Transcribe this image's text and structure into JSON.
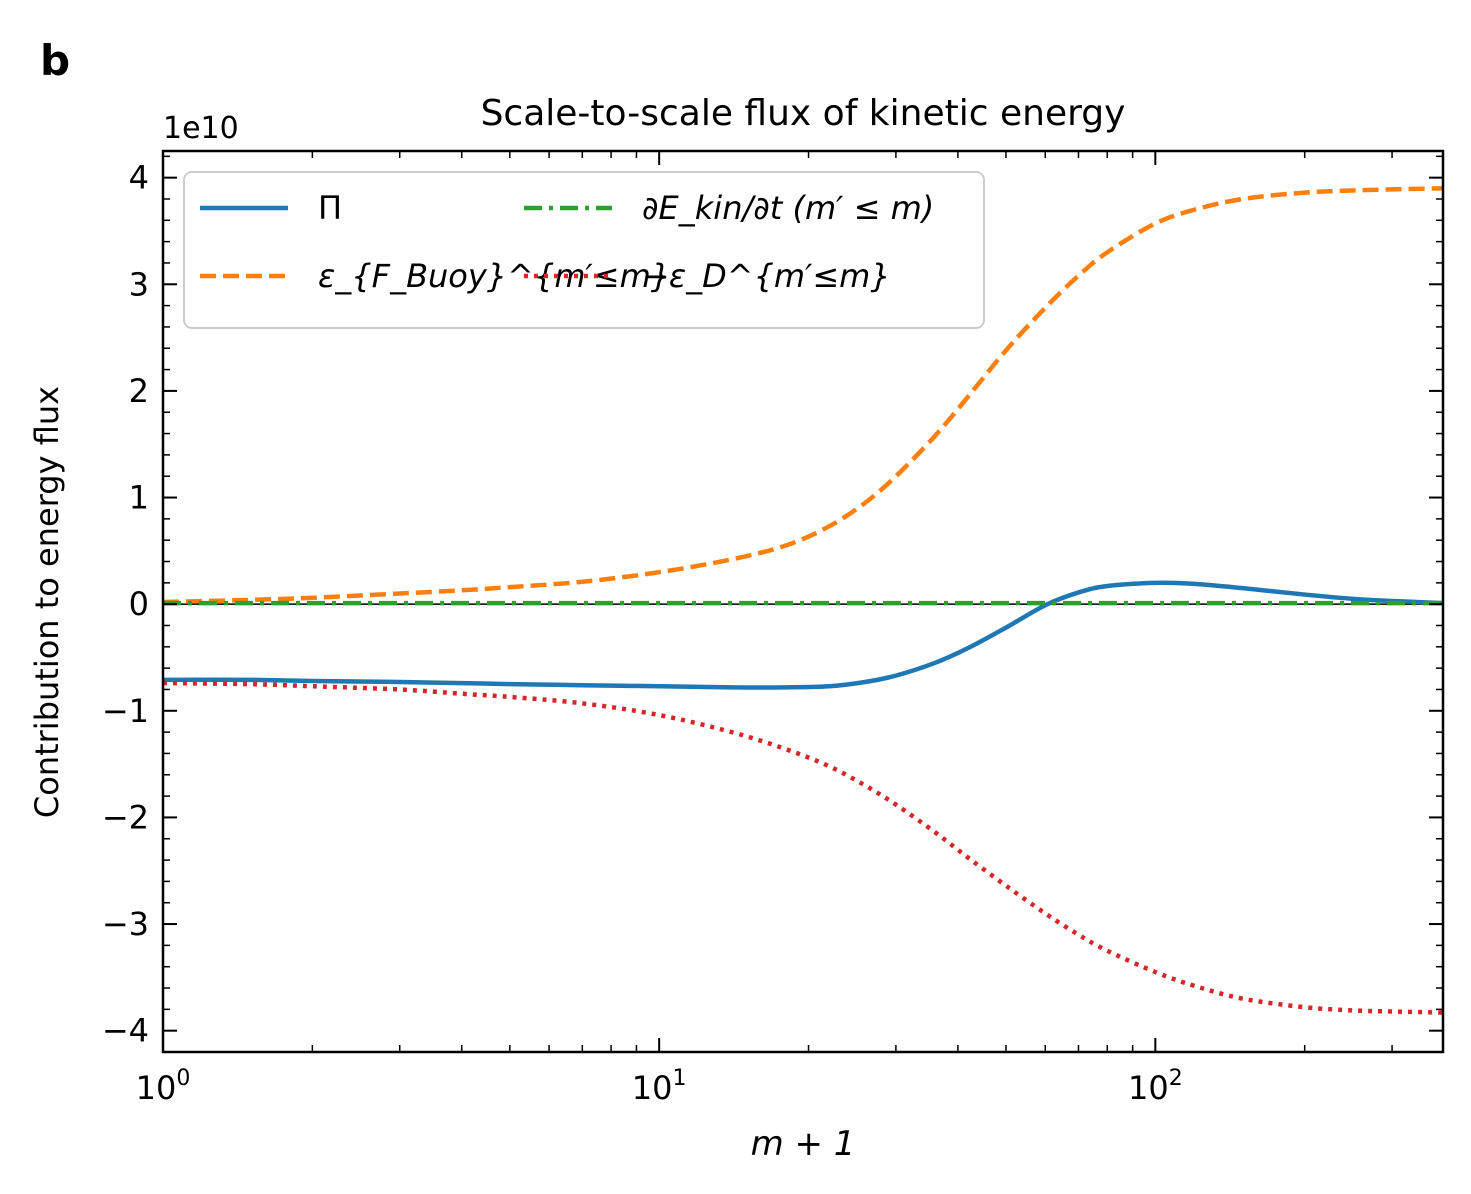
{
  "panel_label": "b",
  "chart_data": {
    "type": "line",
    "title": "Scale-to-scale flux of kinetic energy",
    "xlabel": "m + 1",
    "ylabel": "Contribution to energy flux",
    "x_scale": "log",
    "xlim": [
      1,
      380
    ],
    "ylim": [
      -4.2,
      4.25
    ],
    "y_multiplier": "1e10",
    "x_ticks": [
      {
        "value": 1,
        "base": "10",
        "exp": "0"
      },
      {
        "value": 10,
        "base": "10",
        "exp": "1"
      },
      {
        "value": 100,
        "base": "10",
        "exp": "2"
      }
    ],
    "y_ticks": [
      {
        "value": 4,
        "label": "4"
      },
      {
        "value": 3,
        "label": "3"
      },
      {
        "value": 2,
        "label": "2"
      },
      {
        "value": 1,
        "label": "1"
      },
      {
        "value": 0,
        "label": "0"
      },
      {
        "value": -1,
        "label": "−1"
      },
      {
        "value": -2,
        "label": "−2"
      },
      {
        "value": -3,
        "label": "−3"
      },
      {
        "value": -4,
        "label": "−4"
      }
    ],
    "zero_line": true,
    "legend_position": "upper-left",
    "x": [
      1,
      1.5,
      2,
      3,
      4,
      5,
      7,
      10,
      14,
      18,
      22,
      26,
      30,
      36,
      42,
      50,
      60,
      70,
      80,
      100,
      120,
      150,
      200,
      250,
      300,
      380
    ],
    "series": [
      {
        "name": "Π",
        "color": "#1f77b4",
        "dash": "solid",
        "values": [
          -0.71,
          -0.71,
          -0.72,
          -0.73,
          -0.74,
          -0.75,
          -0.76,
          -0.77,
          -0.78,
          -0.78,
          -0.77,
          -0.73,
          -0.67,
          -0.55,
          -0.41,
          -0.22,
          -0.01,
          0.11,
          0.17,
          0.2,
          0.19,
          0.15,
          0.09,
          0.05,
          0.03,
          0.01
        ]
      },
      {
        "name": "ε_{F_Buoy}^{m′≤m}",
        "color": "#ff7f0e",
        "dash": "dashed",
        "values": [
          0.02,
          0.04,
          0.06,
          0.1,
          0.13,
          0.16,
          0.21,
          0.3,
          0.42,
          0.55,
          0.73,
          0.95,
          1.2,
          1.58,
          1.95,
          2.38,
          2.78,
          3.08,
          3.3,
          3.57,
          3.7,
          3.8,
          3.86,
          3.88,
          3.89,
          3.9
        ]
      },
      {
        "name": "∂E_kin/∂t (m′ ≤ m)",
        "color": "#2ca02c",
        "dash": "dashdot",
        "values": [
          0.01,
          0.01,
          0.01,
          0.01,
          0.01,
          0.01,
          0.01,
          0.01,
          0.01,
          0.01,
          0.01,
          0.01,
          0.01,
          0.01,
          0.01,
          0.01,
          0.01,
          0.01,
          0.01,
          0.01,
          0.01,
          0.01,
          0.01,
          0.01,
          0.01,
          0.01
        ]
      },
      {
        "name": "−ε_D^{m′≤m}",
        "color": "#d62728",
        "dash": "dotted",
        "values": [
          -0.74,
          -0.75,
          -0.77,
          -0.8,
          -0.84,
          -0.87,
          -0.93,
          -1.04,
          -1.2,
          -1.36,
          -1.52,
          -1.7,
          -1.88,
          -2.14,
          -2.38,
          -2.64,
          -2.9,
          -3.1,
          -3.25,
          -3.45,
          -3.58,
          -3.7,
          -3.78,
          -3.81,
          -3.82,
          -3.83
        ]
      }
    ]
  }
}
